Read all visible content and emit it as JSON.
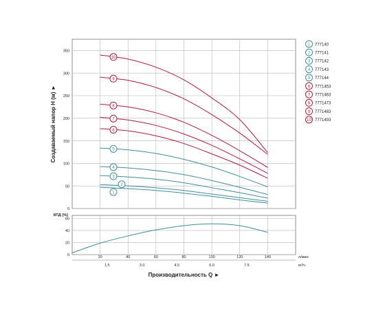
{
  "chart_data": [
    {
      "type": "line",
      "ylabel": "Создаваемый напор H (м) ►",
      "xlim": [
        0,
        160
      ],
      "ylim": [
        0,
        375
      ],
      "yticks": [
        0,
        50,
        100,
        150,
        200,
        250,
        300,
        350
      ],
      "grid": true,
      "legend_position": "right",
      "series": [
        {
          "name": "777140",
          "marker": "1",
          "color": "#3a8e9e",
          "x": [
            20,
            40,
            60,
            80,
            100,
            120,
            140
          ],
          "y": [
            47,
            44,
            40,
            34,
            27,
            19,
            12
          ]
        },
        {
          "name": "777141",
          "marker": "2",
          "color": "#3a8e9e",
          "x": [
            20,
            40,
            60,
            80,
            100,
            120,
            140
          ],
          "y": [
            53,
            50,
            46,
            40,
            32,
            24,
            16
          ]
        },
        {
          "name": "777142",
          "marker": "3",
          "color": "#3a8e9e",
          "x": [
            20,
            40,
            60,
            80,
            100,
            120,
            140
          ],
          "y": [
            73,
            70,
            65,
            57,
            46,
            35,
            23
          ]
        },
        {
          "name": "777143",
          "marker": "4",
          "color": "#3a8e9e",
          "x": [
            20,
            40,
            60,
            80,
            100,
            120,
            140
          ],
          "y": [
            93,
            90,
            84,
            75,
            62,
            47,
            31
          ]
        },
        {
          "name": "777144",
          "marker": "5",
          "color": "#3a8e9e",
          "x": [
            20,
            40,
            60,
            80,
            100,
            120,
            140
          ],
          "y": [
            134,
            130,
            122,
            109,
            92,
            71,
            48
          ]
        },
        {
          "name": "7771453",
          "marker": "6",
          "color": "#b3173a",
          "x": [
            20,
            40,
            60,
            80,
            100,
            120,
            140
          ],
          "y": [
            177,
            172,
            161,
            144,
            121,
            96,
            67
          ]
        },
        {
          "name": "7771463",
          "marker": "7",
          "color": "#b3173a",
          "x": [
            20,
            40,
            60,
            80,
            100,
            120,
            140
          ],
          "y": [
            202,
            196,
            184,
            165,
            140,
            110,
            78
          ]
        },
        {
          "name": "7771473",
          "marker": "8",
          "color": "#b3173a",
          "x": [
            20,
            40,
            60,
            80,
            100,
            120,
            140
          ],
          "y": [
            231,
            225,
            212,
            191,
            162,
            128,
            91
          ]
        },
        {
          "name": "7771483",
          "marker": "9",
          "color": "#b3173a",
          "x": [
            20,
            40,
            60,
            80,
            100,
            120,
            140
          ],
          "y": [
            291,
            284,
            268,
            243,
            208,
            167,
            120
          ]
        },
        {
          "name": "7771493",
          "marker": "10",
          "color": "#b3173a",
          "x": [
            20,
            40,
            60,
            80,
            100,
            120,
            140
          ],
          "y": [
            340,
            331,
            313,
            285,
            245,
            197,
            124
          ]
        }
      ]
    },
    {
      "type": "line",
      "ylabel": "КПД (%)",
      "xlabel": "Производительность Q ►",
      "xlim": [
        0,
        160
      ],
      "ylim": [
        0,
        65
      ],
      "yticks": [
        0,
        20,
        40,
        60
      ],
      "grid": true,
      "x_ticks_lpm": [
        20,
        40,
        60,
        80,
        100,
        120,
        140
      ],
      "x_unit_lpm": "л/мин",
      "x_ticks_m3h": [
        "1.5",
        "3.0",
        "4.5",
        "6.0",
        "7.5"
      ],
      "x_ticks_m3h_at_lpm": [
        25,
        50,
        75,
        100,
        125
      ],
      "x_unit_m3h": "м³/ч",
      "series": [
        {
          "color": "#3a8e9e",
          "x": [
            0,
            20,
            40,
            60,
            80,
            100,
            120,
            140
          ],
          "y": [
            3,
            19,
            31,
            41,
            48,
            51,
            48,
            37
          ]
        }
      ]
    }
  ]
}
